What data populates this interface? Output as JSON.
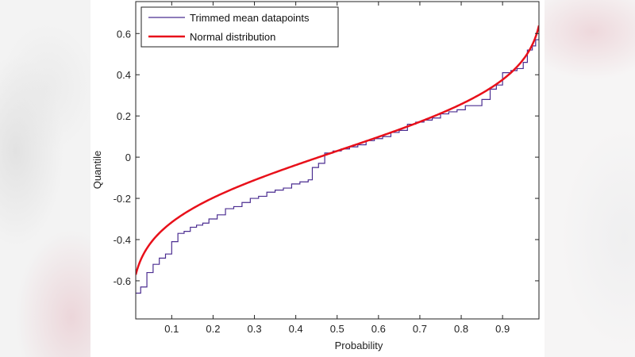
{
  "chart_data": {
    "type": "line",
    "title": "",
    "xlabel": "Probability",
    "ylabel": "Quantile",
    "xlim": [
      0.013,
      0.988
    ],
    "ylim": [
      -0.785,
      0.755
    ],
    "grid": false,
    "legend_position": "upper-left",
    "xticks": [
      0.1,
      0.2,
      0.3,
      0.4,
      0.5,
      0.6,
      0.7,
      0.8,
      0.9
    ],
    "xtick_labels": [
      "0.1",
      "0.2",
      "0.3",
      "0.4",
      "0.5",
      "0.6",
      "0.7",
      "0.8",
      "0.9"
    ],
    "yticks": [
      -0.6,
      -0.4,
      -0.2,
      0,
      0.2,
      0.4,
      0.6
    ],
    "ytick_labels": [
      "-0.6",
      "-0.4",
      "-0.2",
      "0",
      "0.2",
      "0.4",
      "0.6"
    ],
    "series": [
      {
        "name": "Trimmed mean datapoints",
        "color": "#4b2d91",
        "style": "stairs",
        "x": [
          0.013,
          0.025,
          0.04,
          0.055,
          0.07,
          0.085,
          0.1,
          0.115,
          0.13,
          0.145,
          0.16,
          0.175,
          0.19,
          0.21,
          0.23,
          0.25,
          0.27,
          0.29,
          0.31,
          0.33,
          0.35,
          0.37,
          0.39,
          0.41,
          0.43,
          0.44,
          0.455,
          0.47,
          0.49,
          0.51,
          0.53,
          0.55,
          0.57,
          0.59,
          0.61,
          0.63,
          0.65,
          0.67,
          0.69,
          0.71,
          0.73,
          0.75,
          0.77,
          0.79,
          0.81,
          0.83,
          0.85,
          0.87,
          0.885,
          0.9,
          0.92,
          0.935,
          0.95,
          0.96,
          0.972,
          0.98,
          0.988
        ],
        "y": [
          -0.66,
          -0.63,
          -0.56,
          -0.52,
          -0.49,
          -0.47,
          -0.41,
          -0.37,
          -0.36,
          -0.34,
          -0.33,
          -0.32,
          -0.3,
          -0.28,
          -0.25,
          -0.24,
          -0.22,
          -0.2,
          -0.19,
          -0.17,
          -0.16,
          -0.15,
          -0.13,
          -0.12,
          -0.11,
          -0.05,
          -0.03,
          0.02,
          0.03,
          0.04,
          0.05,
          0.06,
          0.08,
          0.09,
          0.1,
          0.12,
          0.13,
          0.16,
          0.17,
          0.18,
          0.19,
          0.21,
          0.22,
          0.23,
          0.25,
          0.25,
          0.28,
          0.33,
          0.35,
          0.41,
          0.42,
          0.43,
          0.46,
          0.52,
          0.54,
          0.57,
          0.6
        ]
      },
      {
        "name": "Normal distribution",
        "color": "#e8101a",
        "style": "line",
        "mu": 0.03,
        "sigma": 0.27
      }
    ]
  },
  "legend": {
    "items": [
      {
        "label": "Trimmed mean datapoints",
        "color": "#4b2d91"
      },
      {
        "label": "Normal distribution",
        "color": "#e8101a"
      }
    ]
  }
}
